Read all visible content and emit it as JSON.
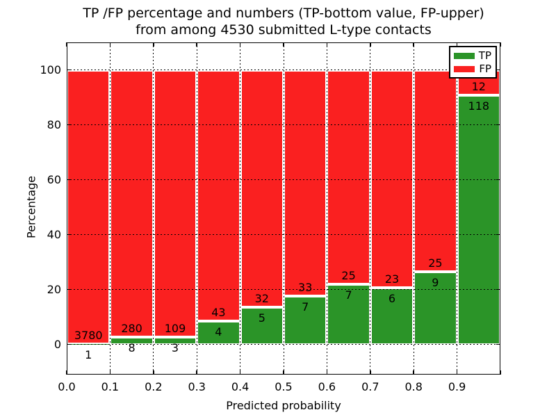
{
  "figure": {
    "title_line1": "TP /FP percentage and numbers (TP-bottom value, FP-upper)",
    "title_line2": "from among 4530 submitted L-type contacts",
    "xlabel": "Predicted probability",
    "ylabel": "Percentage"
  },
  "legend": {
    "items": [
      {
        "label": "TP",
        "color": "#2b9428"
      },
      {
        "label": "FP",
        "color": "#fa2020"
      }
    ]
  },
  "chart_data": {
    "type": "bar",
    "stacked": true,
    "normalized_to_percent": true,
    "title": "TP /FP percentage and numbers (TP-bottom value, FP-upper)\nfrom among 4530 submitted L-type contacts",
    "xlabel": "Predicted probability",
    "ylabel": "Percentage",
    "xlim": [
      0.0,
      1.0
    ],
    "ylim": [
      -11,
      110
    ],
    "xtick_labels": [
      "0.0",
      "0.1",
      "0.2",
      "0.3",
      "0.4",
      "0.5",
      "0.6",
      "0.7",
      "0.8",
      "0.9"
    ],
    "xtick_values": [
      0.0,
      0.1,
      0.2,
      0.3,
      0.4,
      0.5,
      0.6,
      0.7,
      0.8,
      0.9
    ],
    "ytick_labels": [
      "0",
      "20",
      "40",
      "60",
      "80",
      "100"
    ],
    "ytick_values": [
      0,
      20,
      40,
      60,
      80,
      100
    ],
    "grid": "dotted black, on top of bars",
    "legend_position": "upper right",
    "total_contacts_shown_in_title": 4530,
    "series": [
      {
        "name": "TP",
        "color": "#2b9428",
        "position": "bottom"
      },
      {
        "name": "FP",
        "color": "#fa2020",
        "position": "top"
      }
    ],
    "bar_edge_color": "#ffffff",
    "bins": [
      {
        "x0": 0.0,
        "x1": 0.1,
        "tp": 1,
        "fp": 3780,
        "tp_pct": 0.03
      },
      {
        "x0": 0.1,
        "x1": 0.2,
        "tp": 8,
        "fp": 280,
        "tp_pct": 2.78
      },
      {
        "x0": 0.2,
        "x1": 0.3,
        "tp": 3,
        "fp": 109,
        "tp_pct": 2.68
      },
      {
        "x0": 0.3,
        "x1": 0.4,
        "tp": 4,
        "fp": 43,
        "tp_pct": 8.51
      },
      {
        "x0": 0.4,
        "x1": 0.5,
        "tp": 5,
        "fp": 32,
        "tp_pct": 13.51
      },
      {
        "x0": 0.5,
        "x1": 0.6,
        "tp": 7,
        "fp": 33,
        "tp_pct": 17.5
      },
      {
        "x0": 0.6,
        "x1": 0.7,
        "tp": 7,
        "fp": 25,
        "tp_pct": 21.88
      },
      {
        "x0": 0.7,
        "x1": 0.8,
        "tp": 6,
        "fp": 23,
        "tp_pct": 20.69
      },
      {
        "x0": 0.8,
        "x1": 0.9,
        "tp": 9,
        "fp": 25,
        "tp_pct": 26.47
      },
      {
        "x0": 0.9,
        "x1": 1.0,
        "tp": 118,
        "fp": 12,
        "tp_pct": 90.77
      }
    ]
  }
}
